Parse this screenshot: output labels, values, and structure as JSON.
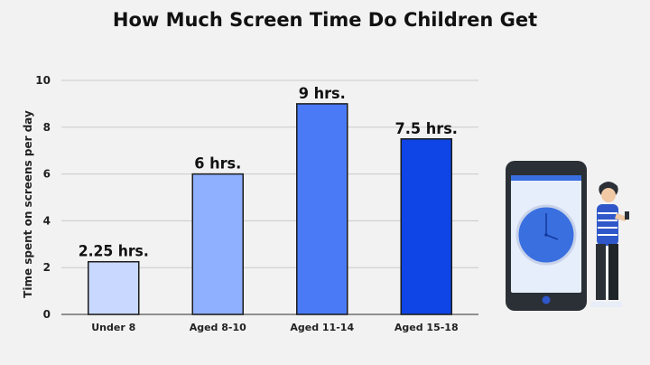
{
  "chart_data": {
    "type": "bar",
    "title": "How Much Screen Time Do Children Get",
    "ylabel": "Time spent on screens per day",
    "xlabel": "",
    "categories": [
      "Under 8",
      "Aged 8-10",
      "Aged 11-14",
      "Aged 15-18"
    ],
    "values": [
      2.25,
      6,
      9,
      7.5
    ],
    "data_labels": [
      "2.25 hrs.",
      "6 hrs.",
      "9 hrs.",
      "7.5 hrs."
    ],
    "ylim": [
      0,
      10
    ],
    "yticks": [
      "0",
      "2",
      "4",
      "6",
      "8",
      "10"
    ],
    "grid": true,
    "bar_colors": [
      "#c9d8ff",
      "#8fb0ff",
      "#4a7af5",
      "#0f45e6"
    ]
  },
  "illustration": {
    "icon": "phone-with-clock-and-person-icon",
    "colors": {
      "phone_body": "#2b3036",
      "screen": "#e6eefc",
      "clock_face": "#3a6fe0",
      "shirt": "#2f57c9",
      "button": "#2f57c9"
    }
  }
}
